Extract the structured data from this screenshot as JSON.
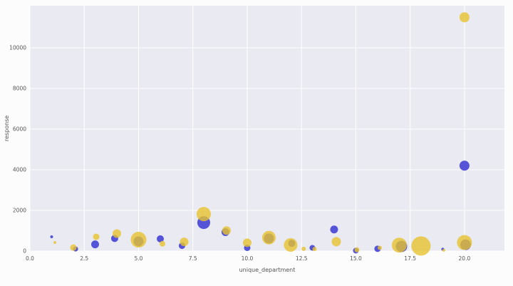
{
  "figure": {
    "outer_background": "#fcfcfc",
    "plot_background": "#eaeaf2",
    "grid_color": "#ffffff"
  },
  "chart_data": {
    "type": "scatter",
    "title": "",
    "xlabel": "unique_department",
    "ylabel": "response",
    "xlim": [
      0,
      21.84
    ],
    "ylim": [
      0,
      12070
    ],
    "x_ticks": [
      0.0,
      2.5,
      5.0,
      7.5,
      10.0,
      12.5,
      15.0,
      17.5,
      20.0
    ],
    "y_ticks": [
      0,
      2000,
      4000,
      6000,
      8000,
      10000
    ],
    "grid": true,
    "legend": false,
    "series": [
      {
        "name": "blue",
        "color": "#3b38d4",
        "opacity": 0.85,
        "points": [
          {
            "x": 1.0,
            "y": 700,
            "r": 2
          },
          {
            "x": 2.1,
            "y": 100,
            "r": 3.5
          },
          {
            "x": 3.0,
            "y": 330,
            "r": 5.5
          },
          {
            "x": 3.9,
            "y": 620,
            "r": 5
          },
          {
            "x": 5.0,
            "y": 480,
            "r": 7
          },
          {
            "x": 6.0,
            "y": 600,
            "r": 5
          },
          {
            "x": 7.0,
            "y": 260,
            "r": 4.5
          },
          {
            "x": 8.0,
            "y": 1400,
            "r": 9
          },
          {
            "x": 9.0,
            "y": 930,
            "r": 5.5
          },
          {
            "x": 10.0,
            "y": 160,
            "r": 4.5
          },
          {
            "x": 11.0,
            "y": 620,
            "r": 7
          },
          {
            "x": 12.05,
            "y": 380,
            "r": 5
          },
          {
            "x": 13.0,
            "y": 160,
            "r": 4
          },
          {
            "x": 14.0,
            "y": 1060,
            "r": 5.5
          },
          {
            "x": 15.0,
            "y": 20,
            "r": 4
          },
          {
            "x": 16.0,
            "y": 110,
            "r": 4.5
          },
          {
            "x": 17.1,
            "y": 230,
            "r": 8
          },
          {
            "x": 19.0,
            "y": 90,
            "r": 2
          },
          {
            "x": 20.0,
            "y": 4200,
            "r": 7
          },
          {
            "x": 20.05,
            "y": 310,
            "r": 7.5
          }
        ]
      },
      {
        "name": "yellow",
        "color": "#e6c32e",
        "opacity": 0.8,
        "points": [
          {
            "x": 1.15,
            "y": 420,
            "r": 2
          },
          {
            "x": 2.0,
            "y": 170,
            "r": 4.5
          },
          {
            "x": 3.05,
            "y": 700,
            "r": 4.5
          },
          {
            "x": 4.0,
            "y": 860,
            "r": 6
          },
          {
            "x": 5.0,
            "y": 560,
            "r": 11
          },
          {
            "x": 6.1,
            "y": 360,
            "r": 4
          },
          {
            "x": 7.1,
            "y": 450,
            "r": 6
          },
          {
            "x": 8.0,
            "y": 1820,
            "r": 10
          },
          {
            "x": 9.05,
            "y": 1010,
            "r": 6
          },
          {
            "x": 10.0,
            "y": 410,
            "r": 6
          },
          {
            "x": 11.0,
            "y": 660,
            "r": 9.5
          },
          {
            "x": 12.0,
            "y": 300,
            "r": 9.5
          },
          {
            "x": 12.6,
            "y": 110,
            "r": 3
          },
          {
            "x": 13.1,
            "y": 100,
            "r": 3
          },
          {
            "x": 14.1,
            "y": 460,
            "r": 6.5
          },
          {
            "x": 15.05,
            "y": 60,
            "r": 3.5
          },
          {
            "x": 16.1,
            "y": 160,
            "r": 3
          },
          {
            "x": 17.0,
            "y": 290,
            "r": 10.5
          },
          {
            "x": 18.0,
            "y": 250,
            "r": 13.5
          },
          {
            "x": 19.05,
            "y": 40,
            "r": 2
          },
          {
            "x": 20.0,
            "y": 11500,
            "r": 7
          },
          {
            "x": 20.0,
            "y": 420,
            "r": 10.5
          }
        ]
      }
    ]
  }
}
